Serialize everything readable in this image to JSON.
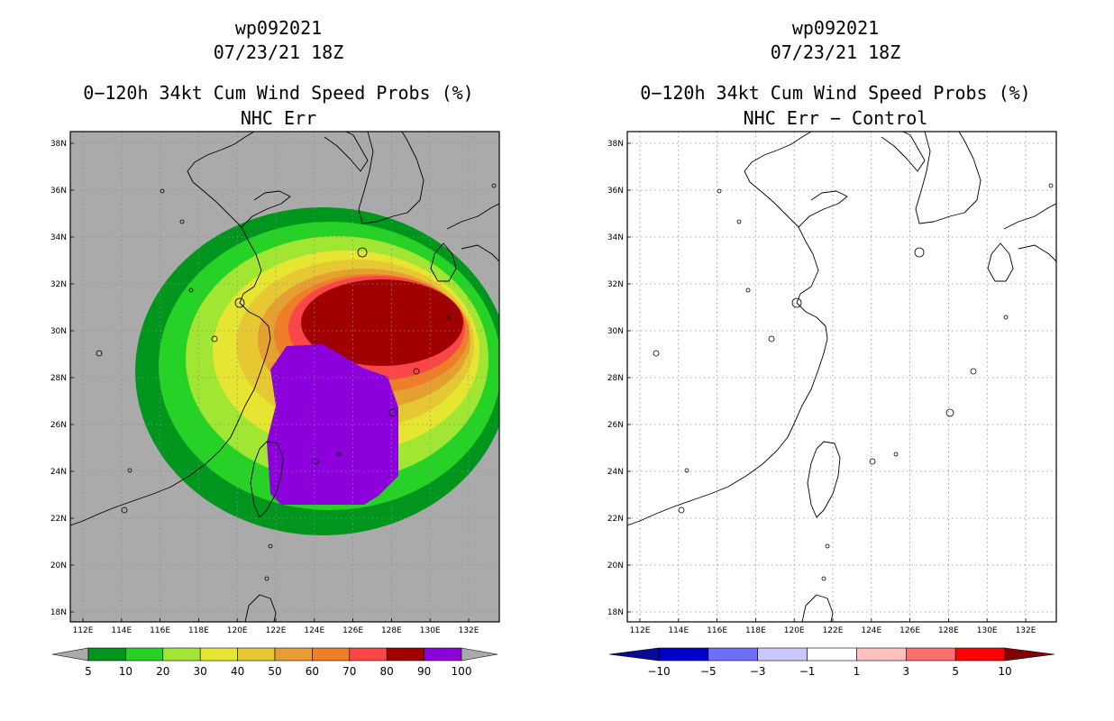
{
  "left": {
    "storm_id": "wp092021",
    "datetime": "07/23/21 18Z",
    "product": "0−120h 34kt Cum Wind Speed Probs (%)",
    "subtitle": "NHC Err",
    "background": "#aaaaaa",
    "colorbar": {
      "colors": [
        "#00961e",
        "#25d225",
        "#a0e632",
        "#e6e632",
        "#e6c832",
        "#e6a032",
        "#f07d28",
        "#fa4646",
        "#a00000",
        "#8c00dc"
      ],
      "labels": [
        "5",
        "10",
        "20",
        "30",
        "40",
        "50",
        "60",
        "70",
        "80",
        "90",
        "100"
      ]
    }
  },
  "right": {
    "storm_id": "wp092021",
    "datetime": "07/23/21 18Z",
    "product": "0−120h 34kt Cum Wind Speed Probs (%)",
    "subtitle": "NHC Err − Control",
    "background": "#ffffff",
    "colorbar": {
      "colors": [
        "#0000c8",
        "#6e6eff",
        "#c8c8ff",
        "#ffffff",
        "#ffc0c0",
        "#ff6e6e",
        "#ff0000"
      ],
      "end_low": "#0a0a96",
      "end_high": "#820000",
      "labels": [
        "−10",
        "−5",
        "−3",
        "−1",
        "1",
        "3",
        "5",
        "10"
      ]
    }
  },
  "axes": {
    "lat_labels": [
      "38N",
      "36N",
      "34N",
      "32N",
      "30N",
      "28N",
      "26N",
      "24N",
      "22N",
      "20N",
      "18N"
    ],
    "lon_labels": [
      "112E",
      "114E",
      "116E",
      "118E",
      "120E",
      "122E",
      "124E",
      "126E",
      "128E",
      "130E",
      "132E"
    ]
  },
  "probability_contours": [
    {
      "level": "5",
      "color": "#00961e"
    },
    {
      "level": "10",
      "color": "#25d225"
    },
    {
      "level": "20",
      "color": "#a0e632"
    },
    {
      "level": "30",
      "color": "#e6e632"
    },
    {
      "level": "40",
      "color": "#e6c832"
    },
    {
      "level": "50",
      "color": "#e6a032"
    },
    {
      "level": "60",
      "color": "#f07d28"
    },
    {
      "level": "70",
      "color": "#fa4646"
    },
    {
      "level": "80",
      "color": "#a00000"
    },
    {
      "level": "90",
      "color": "#8c00dc"
    }
  ]
}
